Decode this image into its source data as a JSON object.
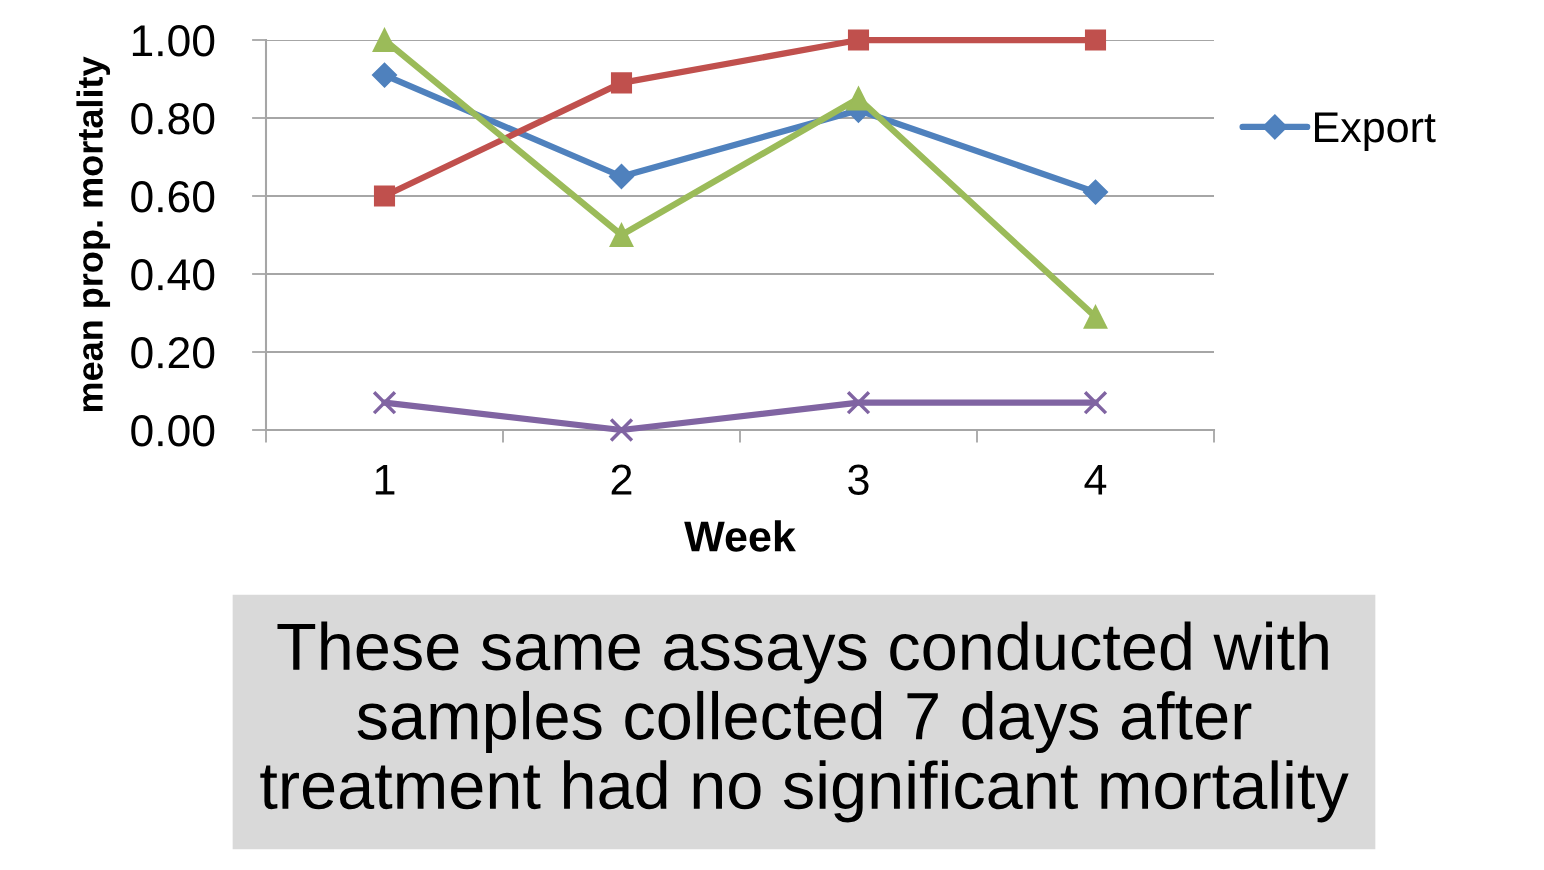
{
  "chart_data": {
    "type": "line",
    "xlabel": "Week",
    "ylabel": "mean prop. mortality",
    "categories": [
      "1",
      "2",
      "3",
      "4"
    ],
    "series": [
      {
        "name": "Export",
        "color": "#4f81bd",
        "marker": "diamond",
        "values": [
          0.91,
          0.65,
          0.82,
          0.61
        ]
      },
      {
        "color": "#c0504d",
        "marker": "square",
        "values": [
          0.6,
          0.89,
          1.0,
          1.0
        ]
      },
      {
        "color": "#9bbb59",
        "marker": "triangle",
        "values": [
          1.0,
          0.5,
          0.85,
          0.29
        ]
      },
      {
        "color": "#8064a2",
        "marker": "cross",
        "values": [
          0.07,
          0.0,
          0.07,
          0.07
        ]
      }
    ],
    "ylim": [
      0,
      1
    ],
    "yticks": [
      {
        "value": 0,
        "label": "0.00"
      },
      {
        "value": 0.2,
        "label": "0.20"
      },
      {
        "value": 0.4,
        "label": "0.40"
      },
      {
        "value": 0.6,
        "label": "0.60"
      },
      {
        "value": 0.8,
        "label": "0.80"
      },
      {
        "value": 1,
        "label": "1.00"
      }
    ],
    "grid": "y",
    "legend": "right",
    "line_style": "solid",
    "annotations": [
      "These same assays conducted with\nsamples collected 7 days after\ntreatment had no significant mortality"
    ]
  }
}
